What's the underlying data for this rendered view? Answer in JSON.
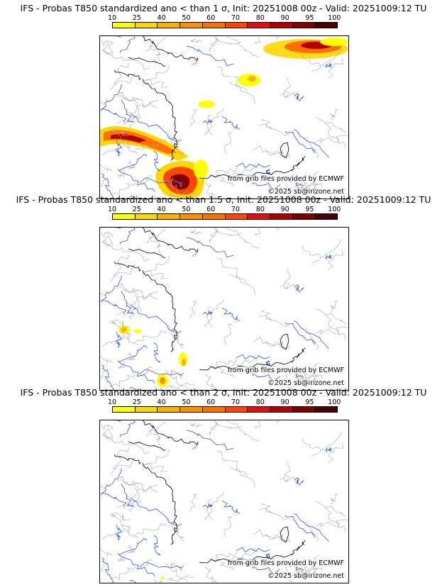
{
  "colorbar": {
    "ticks": [
      "10",
      "25",
      "40",
      "50",
      "60",
      "70",
      "80",
      "90",
      "95",
      "100"
    ],
    "colors": [
      "#ffff00",
      "#ffd700",
      "#ffb000",
      "#ff9000",
      "#ff7000",
      "#ff4500",
      "#e01010",
      "#b00000",
      "#800000",
      "#4a0000"
    ]
  },
  "panels": [
    {
      "title": "IFS - Probas T850  standardized ano < than 1 σ, Init: 20251008 00z - Valid: 20251009:12 TU",
      "credit_grib": "from grib files provided by ECMWF",
      "credit_copy": "©2025 sb@irizone.net"
    },
    {
      "title": "IFS - Probas T850  standardized ano < than 1.5 σ, Init: 20251008 00z - Valid: 20251009:12 TU",
      "credit_grib": "from grib files provided by ECMWF",
      "credit_copy": "©2025 sb@irizone.net"
    },
    {
      "title": "IFS - Probas T850  standardized ano < than 2 σ, Init: 20251008 00z - Valid: 20251009:12 TU",
      "credit_grib": "from grib files provided by ECMWF",
      "credit_copy": "©2025 sb@irizone.net"
    }
  ]
}
